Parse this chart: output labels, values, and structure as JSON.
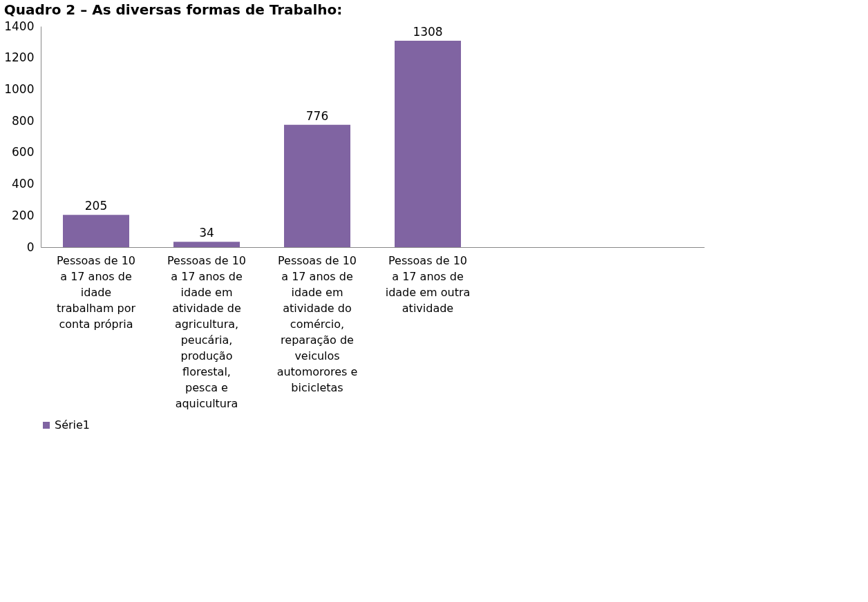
{
  "chart_data": {
    "type": "bar",
    "title": "Quadro 2 – As diversas formas de Trabalho:",
    "categories": [
      "Pessoas de 10 a 17 anos de idade trabalham por conta própria",
      "Pessoas de 10 a 17 anos de idade em atividade de agricultura, peucária, produção florestal, pesca e aquicultura",
      "Pessoas de 10 a 17 anos de idade em atividade do comércio, reparação de veiculos automorores e bicicletas",
      "Pessoas de 10 a 17 anos de idade em outra atividade",
      null,
      null
    ],
    "series": [
      {
        "name": "Série1",
        "color": "#8064a2",
        "values": [
          205,
          34,
          776,
          1308,
          null,
          null
        ]
      }
    ],
    "ylim": [
      0,
      1400
    ],
    "yticks": [
      0,
      200,
      400,
      600,
      800,
      1000,
      1200,
      1400
    ],
    "data_labels": true,
    "grid": false,
    "legend": "bottom"
  }
}
